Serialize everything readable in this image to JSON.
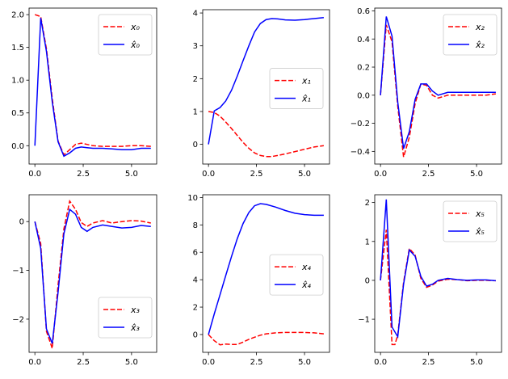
{
  "chart_data": [
    {
      "type": "line",
      "xlim": [
        -0.3,
        6.3
      ],
      "ylim": [
        -0.28,
        2.1
      ],
      "xticks": [
        0,
        2.5,
        5
      ],
      "xtick_labels": [
        "0.0",
        "2.5",
        "5.0"
      ],
      "yticks": [
        0,
        0.5,
        1.0,
        1.5,
        2.0
      ],
      "ytick_labels": [
        "0.0",
        "0.5",
        "1.0",
        "1.5",
        "2.0"
      ],
      "legend_position": "top-right",
      "series": [
        {
          "name": "x₀",
          "color": "#ff0000",
          "dash": true,
          "x": [
            0,
            0.3,
            0.6,
            0.9,
            1.2,
            1.5,
            1.8,
            2.1,
            2.4,
            2.7,
            3.0,
            3.5,
            4.0,
            4.5,
            5.0,
            5.5,
            6.0
          ],
          "y": [
            2.0,
            1.97,
            1.48,
            0.72,
            0.07,
            -0.14,
            -0.06,
            0.02,
            0.04,
            0.02,
            0.0,
            -0.01,
            -0.01,
            -0.01,
            0.0,
            0.0,
            -0.01
          ]
        },
        {
          "name": "x̂₀",
          "color": "#0000ff",
          "dash": false,
          "x": [
            0,
            0.3,
            0.6,
            0.9,
            1.2,
            1.5,
            1.8,
            2.1,
            2.4,
            2.7,
            3.0,
            3.5,
            4.0,
            4.5,
            5.0,
            5.5,
            6.0
          ],
          "y": [
            0.0,
            1.95,
            1.44,
            0.67,
            0.06,
            -0.16,
            -0.11,
            -0.04,
            -0.02,
            -0.03,
            -0.04,
            -0.04,
            -0.05,
            -0.06,
            -0.06,
            -0.04,
            -0.04
          ]
        }
      ]
    },
    {
      "type": "line",
      "xlim": [
        -0.3,
        6.3
      ],
      "ylim": [
        -0.6,
        4.1
      ],
      "xticks": [
        0,
        2.5,
        5
      ],
      "xtick_labels": [
        "0.0",
        "2.5",
        "5.0"
      ],
      "yticks": [
        0,
        1,
        2,
        3,
        4
      ],
      "ytick_labels": [
        "0",
        "1",
        "2",
        "3",
        "4"
      ],
      "legend_position": "center-right",
      "series": [
        {
          "name": "x₁",
          "color": "#ff0000",
          "dash": true,
          "x": [
            0,
            0.3,
            0.6,
            0.9,
            1.2,
            1.5,
            1.8,
            2.1,
            2.4,
            2.7,
            3.0,
            3.3,
            3.6,
            4.0,
            4.5,
            5.0,
            5.5,
            6.0
          ],
          "y": [
            1.0,
            0.97,
            0.86,
            0.68,
            0.48,
            0.27,
            0.06,
            -0.12,
            -0.26,
            -0.34,
            -0.37,
            -0.37,
            -0.34,
            -0.29,
            -0.22,
            -0.15,
            -0.08,
            -0.04
          ]
        },
        {
          "name": "x̂₁",
          "color": "#0000ff",
          "dash": false,
          "x": [
            0,
            0.3,
            0.6,
            0.9,
            1.2,
            1.5,
            1.8,
            2.1,
            2.4,
            2.7,
            3.0,
            3.3,
            3.6,
            4.0,
            4.5,
            5.0,
            5.5,
            6.0
          ],
          "y": [
            0.0,
            1.02,
            1.12,
            1.32,
            1.65,
            2.08,
            2.55,
            3.0,
            3.42,
            3.68,
            3.8,
            3.83,
            3.82,
            3.79,
            3.78,
            3.8,
            3.83,
            3.86
          ]
        }
      ]
    },
    {
      "type": "line",
      "xlim": [
        -0.3,
        6.3
      ],
      "ylim": [
        -0.49,
        0.62
      ],
      "xticks": [
        0,
        2.5,
        5
      ],
      "xtick_labels": [
        "0.0",
        "2.5",
        "5.0"
      ],
      "yticks": [
        -0.4,
        -0.2,
        0.0,
        0.2,
        0.4,
        0.6
      ],
      "ytick_labels": [
        "−0.4",
        "−0.2",
        "0.0",
        "0.2",
        "0.4",
        "0.6"
      ],
      "legend_position": "top-right",
      "series": [
        {
          "name": "x₂",
          "color": "#ff0000",
          "dash": true,
          "x": [
            0,
            0.3,
            0.6,
            0.9,
            1.2,
            1.5,
            1.8,
            2.1,
            2.4,
            2.7,
            3.0,
            3.5,
            4.0,
            4.5,
            5.0,
            5.5,
            6.0
          ],
          "y": [
            0.0,
            0.5,
            0.38,
            -0.08,
            -0.44,
            -0.3,
            -0.06,
            0.08,
            0.07,
            0.0,
            -0.02,
            0.0,
            0.0,
            0.0,
            0.0,
            0.0,
            0.01
          ]
        },
        {
          "name": "x̂₂",
          "color": "#0000ff",
          "dash": false,
          "x": [
            0,
            0.3,
            0.6,
            0.9,
            1.2,
            1.5,
            1.8,
            2.1,
            2.4,
            2.7,
            3.0,
            3.5,
            4.0,
            4.5,
            5.0,
            5.5,
            6.0
          ],
          "y": [
            0.0,
            0.56,
            0.42,
            -0.05,
            -0.38,
            -0.26,
            -0.03,
            0.08,
            0.08,
            0.03,
            0.0,
            0.02,
            0.02,
            0.02,
            0.02,
            0.02,
            0.02
          ]
        }
      ]
    },
    {
      "type": "line",
      "xlim": [
        -0.3,
        6.3
      ],
      "ylim": [
        -2.68,
        0.55
      ],
      "xticks": [
        0,
        2.5,
        5
      ],
      "xtick_labels": [
        "0.0",
        "2.5",
        "5.0"
      ],
      "yticks": [
        -2,
        -1,
        0
      ],
      "ytick_labels": [
        "−2",
        "−1",
        "0"
      ],
      "legend_position": "bottom-right",
      "series": [
        {
          "name": "x₃",
          "color": "#ff0000",
          "dash": true,
          "x": [
            0,
            0.3,
            0.6,
            0.9,
            1.2,
            1.5,
            1.8,
            2.1,
            2.4,
            2.7,
            3.0,
            3.5,
            4.0,
            4.5,
            5.0,
            5.5,
            6.0
          ],
          "y": [
            0.0,
            -0.45,
            -2.25,
            -2.6,
            -1.3,
            -0.15,
            0.42,
            0.25,
            -0.02,
            -0.1,
            -0.03,
            0.02,
            -0.03,
            0.0,
            0.02,
            0.01,
            -0.03
          ]
        },
        {
          "name": "x̂₃",
          "color": "#0000ff",
          "dash": false,
          "x": [
            0,
            0.3,
            0.6,
            0.9,
            1.2,
            1.5,
            1.8,
            2.1,
            2.4,
            2.7,
            3.0,
            3.5,
            4.0,
            4.5,
            5.0,
            5.5,
            6.0
          ],
          "y": [
            0.0,
            -0.55,
            -2.2,
            -2.5,
            -1.45,
            -0.25,
            0.25,
            0.15,
            -0.12,
            -0.2,
            -0.12,
            -0.07,
            -0.1,
            -0.13,
            -0.12,
            -0.08,
            -0.1
          ]
        }
      ]
    },
    {
      "type": "line",
      "xlim": [
        -0.3,
        6.3
      ],
      "ylim": [
        -1.3,
        10.2
      ],
      "xticks": [
        0,
        2.5,
        5
      ],
      "xtick_labels": [
        "0.0",
        "2.5",
        "5.0"
      ],
      "yticks": [
        0,
        2,
        4,
        6,
        8,
        10
      ],
      "ytick_labels": [
        "0",
        "2",
        "4",
        "6",
        "8",
        "10"
      ],
      "legend_position": "center-right",
      "series": [
        {
          "name": "x₄",
          "color": "#ff0000",
          "dash": true,
          "x": [
            0,
            0.3,
            0.6,
            0.9,
            1.2,
            1.5,
            1.8,
            2.1,
            2.4,
            2.7,
            3.0,
            3.5,
            4.0,
            4.5,
            5.0,
            5.5,
            6.0
          ],
          "y": [
            0.0,
            -0.45,
            -0.75,
            -0.7,
            -0.72,
            -0.72,
            -0.55,
            -0.35,
            -0.2,
            -0.05,
            0.05,
            0.12,
            0.15,
            0.15,
            0.15,
            0.12,
            0.05
          ]
        },
        {
          "name": "x̂₄",
          "color": "#0000ff",
          "dash": false,
          "x": [
            0,
            0.3,
            0.6,
            0.9,
            1.2,
            1.5,
            1.8,
            2.1,
            2.4,
            2.7,
            3.0,
            3.5,
            4.0,
            4.5,
            5.0,
            5.5,
            6.0
          ],
          "y": [
            0.0,
            1.5,
            2.9,
            4.3,
            5.7,
            7.0,
            8.1,
            8.9,
            9.4,
            9.55,
            9.5,
            9.3,
            9.05,
            8.85,
            8.75,
            8.7,
            8.7
          ]
        }
      ]
    },
    {
      "type": "line",
      "xlim": [
        -0.3,
        6.3
      ],
      "ylim": [
        -1.85,
        2.2
      ],
      "xticks": [
        0,
        2.5,
        5
      ],
      "xtick_labels": [
        "0.0",
        "2.5",
        "5.0"
      ],
      "yticks": [
        -1,
        0,
        1,
        2
      ],
      "ytick_labels": [
        "−1",
        "0",
        "1",
        "2"
      ],
      "legend_position": "top-right",
      "series": [
        {
          "name": "x₅",
          "color": "#ff0000",
          "dash": true,
          "x": [
            0,
            0.3,
            0.6,
            0.75,
            0.9,
            1.2,
            1.5,
            1.8,
            2.1,
            2.4,
            2.7,
            3.0,
            3.5,
            4.0,
            4.5,
            5.0,
            5.5,
            6.0
          ],
          "y": [
            0.0,
            1.3,
            -1.65,
            -1.65,
            -1.4,
            -0.05,
            0.82,
            0.65,
            0.05,
            -0.18,
            -0.12,
            -0.02,
            0.03,
            0.02,
            -0.01,
            0.0,
            0.0,
            -0.01
          ]
        },
        {
          "name": "x̂₅",
          "color": "#0000ff",
          "dash": false,
          "x": [
            0,
            0.3,
            0.6,
            0.9,
            1.2,
            1.5,
            1.8,
            2.1,
            2.4,
            2.7,
            3.0,
            3.5,
            4.0,
            4.5,
            5.0,
            5.5,
            6.0
          ],
          "y": [
            0.0,
            2.08,
            -1.2,
            -1.45,
            -0.1,
            0.78,
            0.62,
            0.1,
            -0.15,
            -0.1,
            0.0,
            0.05,
            0.02,
            0.0,
            0.01,
            0.01,
            -0.01
          ]
        }
      ]
    }
  ]
}
